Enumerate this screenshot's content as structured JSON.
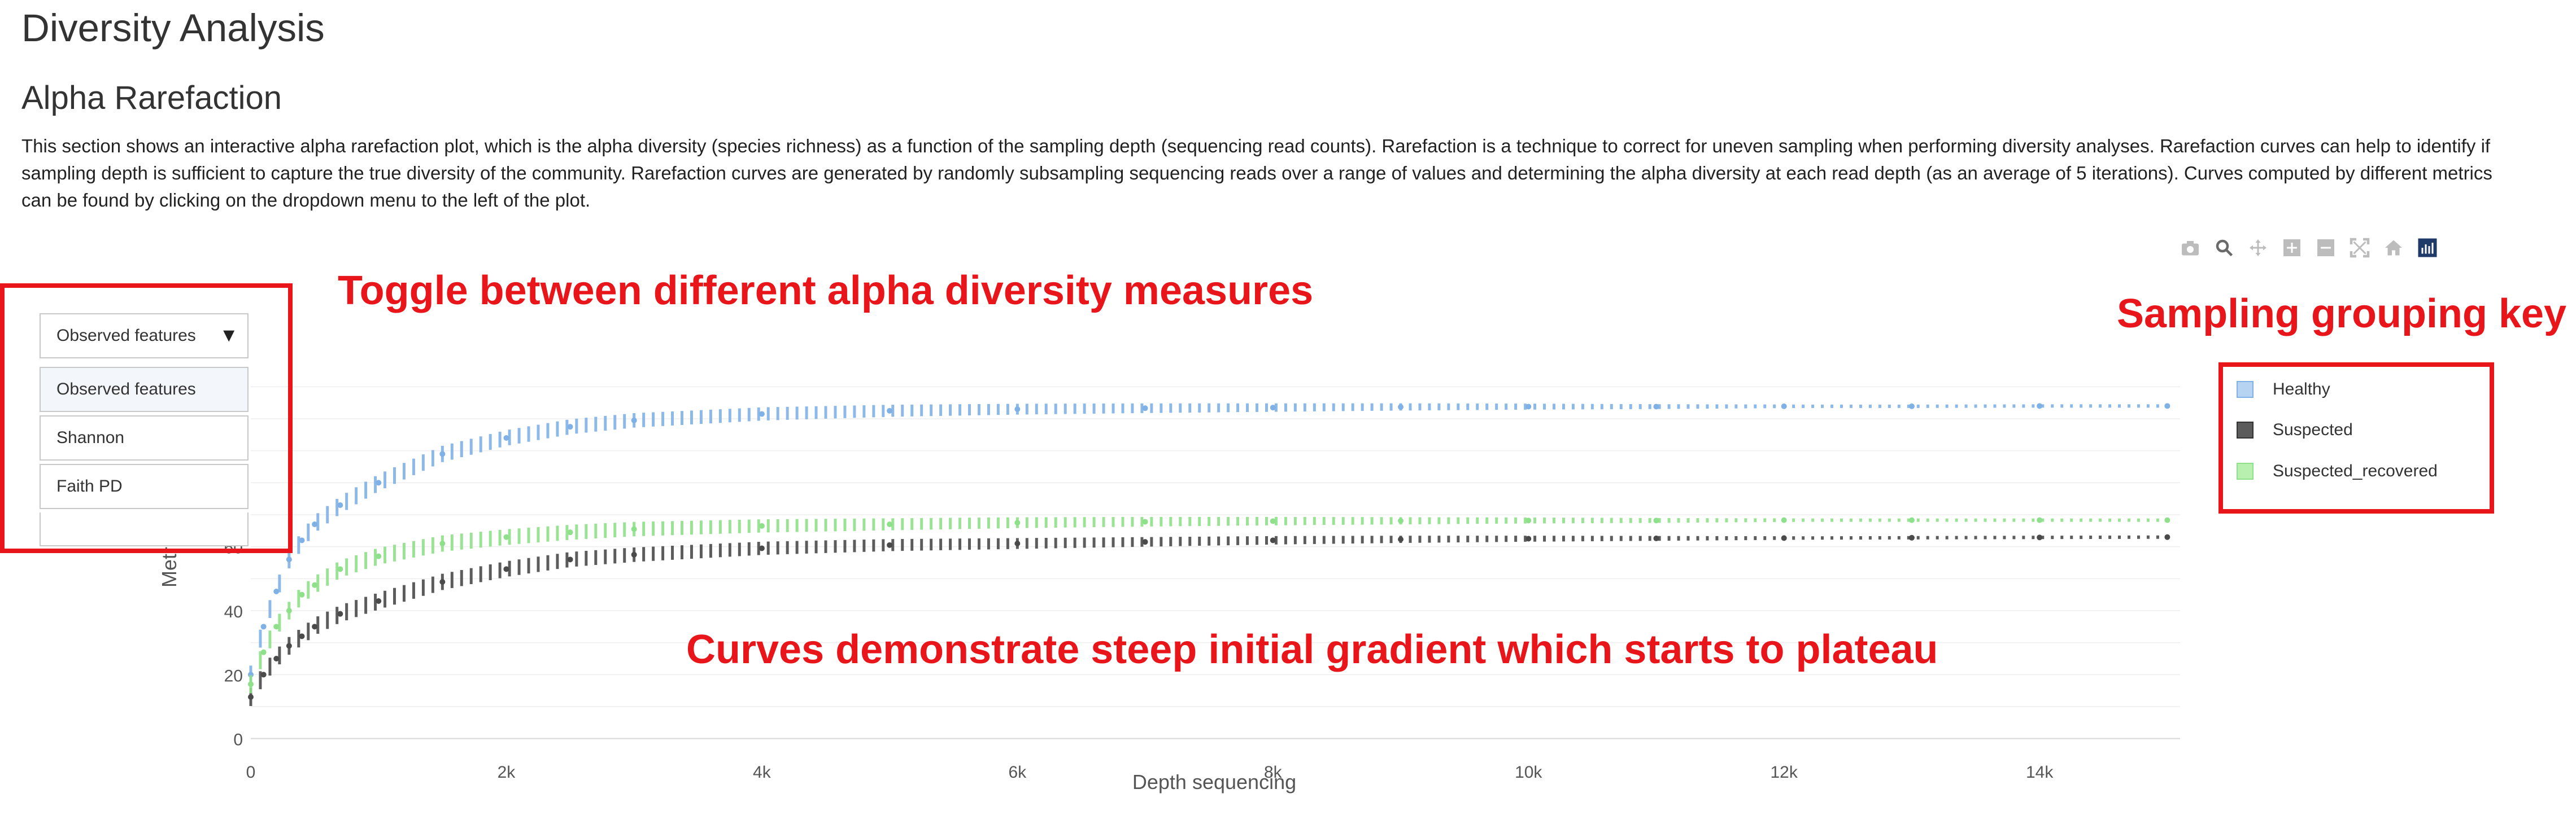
{
  "header": {
    "page_title": "Diversity Analysis",
    "section_title": "Alpha Rarefaction",
    "description": "This section shows an interactive alpha rarefaction plot, which is the alpha diversity (species richness) as a function of the sampling depth (sequencing read counts). Rarefaction is a technique to correct for uneven sampling when performing diversity analyses. Rarefaction curves can help to identify if sampling depth is sufficient to capture the true diversity of the community. Rarefaction curves are generated by randomly subsampling sequencing reads over a range of values and determining the alpha diversity at each read depth (as an average of 5 iterations). Curves computed by different metrics can be found by clicking on the dropdown menu to the left of the plot."
  },
  "modebar": {
    "icons": [
      "camera-icon",
      "zoom-icon",
      "pan-icon",
      "zoom-in-icon",
      "zoom-out-icon",
      "autoscale-icon",
      "home-icon",
      "plotly-logo-icon"
    ]
  },
  "dropdown": {
    "selected": "Observed features",
    "options": [
      "Observed features",
      "Shannon",
      "Faith PD"
    ]
  },
  "annotations": {
    "toggle_label": "Toggle between different alpha diversity measures",
    "grouping_label": "Sampling grouping key",
    "curve_label": "Curves demonstrate steep initial gradient which starts to plateau"
  },
  "colors": {
    "annotation_red": "#e8161b",
    "healthy": "#7fb1e6",
    "suspected": "#4a4a4a",
    "suspected_recovered": "#8fe08a"
  },
  "chart_data": {
    "type": "scatter",
    "xlabel": "Depth sequencing",
    "ylabel": "Metric",
    "xlim": [
      0,
      15100
    ],
    "ylim": [
      -2,
      118
    ],
    "x_ticks": [
      0,
      2000,
      4000,
      6000,
      8000,
      10000,
      12000,
      14000
    ],
    "x_tick_labels": [
      "0",
      "2k",
      "4k",
      "6k",
      "8k",
      "10k",
      "12k",
      "14k"
    ],
    "y_ticks": [
      0,
      20,
      40,
      60
    ],
    "y_tick_labels": [
      "0",
      "20",
      "40",
      "60"
    ],
    "grid": true,
    "legend_position": "right",
    "series": [
      {
        "name": "Healthy",
        "color": "#7fb1e6",
        "x": [
          0,
          100,
          200,
          300,
          400,
          500,
          700,
          1000,
          1500,
          2000,
          2500,
          3000,
          4000,
          5000,
          6000,
          7000,
          8000,
          9000,
          10000,
          11000,
          12000,
          13000,
          14000,
          15000
        ],
        "y": [
          20,
          35,
          46,
          56,
          62,
          67,
          73,
          80,
          89,
          94,
          97.5,
          99.5,
          101.5,
          102.5,
          103,
          103.3,
          103.5,
          103.7,
          103.8,
          103.8,
          103.9,
          103.9,
          104,
          104
        ]
      },
      {
        "name": "Suspected",
        "color": "#4a4a4a",
        "x": [
          0,
          100,
          200,
          300,
          400,
          500,
          700,
          1000,
          1500,
          2000,
          2500,
          3000,
          4000,
          5000,
          6000,
          7000,
          8000,
          9000,
          10000,
          11000,
          12000,
          13000,
          14000,
          15000
        ],
        "y": [
          13,
          20,
          25,
          29,
          32,
          35,
          39,
          43,
          49,
          53,
          56,
          57.5,
          59.5,
          60.5,
          61,
          61.5,
          62,
          62.3,
          62.5,
          62.6,
          62.7,
          62.8,
          62.9,
          63
        ]
      },
      {
        "name": "Suspected_recovered",
        "color": "#8fe08a",
        "x": [
          0,
          100,
          200,
          300,
          400,
          500,
          700,
          1000,
          1500,
          2000,
          2500,
          3000,
          4000,
          5000,
          6000,
          7000,
          8000,
          9000,
          10000,
          11000,
          12000,
          13000,
          14000,
          15000
        ],
        "y": [
          17,
          27,
          35,
          40,
          45,
          48,
          53,
          57,
          61,
          63,
          64.5,
          65.5,
          66.5,
          67,
          67.5,
          67.8,
          68,
          68.1,
          68.2,
          68.2,
          68.3,
          68.3,
          68.3,
          68.3
        ]
      }
    ]
  }
}
